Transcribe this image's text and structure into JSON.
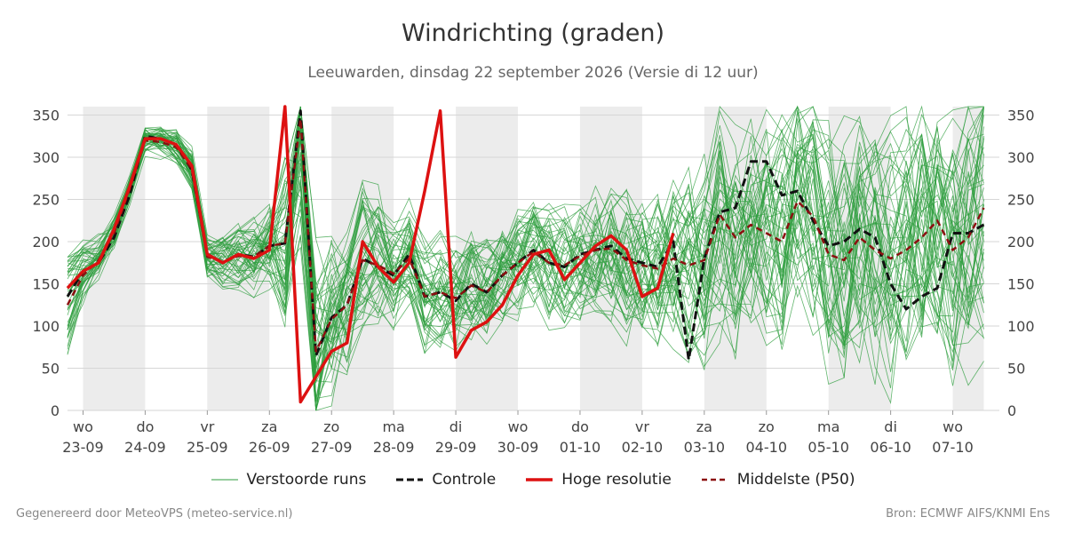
{
  "title": "Windrichting (graden)",
  "subtitle": "Leeuwarden, dinsdag 22 september 2026 (Versie di 12 uur)",
  "footer": {
    "left": "Gegenereerd door MeteoVPS (meteo-service.nl)",
    "right": "Bron: ECMWF AIFS/KNMI Ens"
  },
  "legend": [
    {
      "label": "Verstoorde runs",
      "color": "#2e9e3e",
      "style": "thin"
    },
    {
      "label": "Controle",
      "color": "#111111",
      "style": "dashed"
    },
    {
      "label": "Hoge resolutie",
      "color": "#dd1111",
      "style": "solid-thick"
    },
    {
      "label": "Middelste (P50)",
      "color": "#8b1010",
      "style": "dashed"
    }
  ],
  "chart_data": {
    "type": "line",
    "title": "Windrichting (graden)",
    "ylim": [
      0,
      360
    ],
    "yticks": [
      0,
      50,
      100,
      150,
      200,
      250,
      300,
      350
    ],
    "xlim": [
      -0.25,
      14.75
    ],
    "grid": true,
    "legend_position": "bottom",
    "weekend_shading": [
      [
        0,
        1
      ],
      [
        2,
        3
      ],
      [
        4,
        5
      ],
      [
        6,
        7
      ],
      [
        8,
        9
      ],
      [
        10,
        11
      ],
      [
        12,
        13
      ],
      [
        14,
        14.5
      ]
    ],
    "x_ticks": [
      {
        "day": "wo",
        "date": "23-09"
      },
      {
        "day": "do",
        "date": "24-09"
      },
      {
        "day": "vr",
        "date": "25-09"
      },
      {
        "day": "za",
        "date": "26-09"
      },
      {
        "day": "zo",
        "date": "27-09"
      },
      {
        "day": "ma",
        "date": "28-09"
      },
      {
        "day": "di",
        "date": "29-09"
      },
      {
        "day": "wo",
        "date": "30-09"
      },
      {
        "day": "do",
        "date": "01-10"
      },
      {
        "day": "vr",
        "date": "02-10"
      },
      {
        "day": "za",
        "date": "03-10"
      },
      {
        "day": "zo",
        "date": "04-10"
      },
      {
        "day": "ma",
        "date": "05-10"
      },
      {
        "day": "di",
        "date": "06-10"
      },
      {
        "day": "wo",
        "date": "07-10"
      }
    ],
    "series": [
      {
        "name": "Hoge resolutie",
        "x": [
          -0.25,
          0,
          0.25,
          0.5,
          0.75,
          1,
          1.25,
          1.5,
          1.75,
          2,
          2.25,
          2.5,
          2.75,
          3,
          3.25,
          3.5,
          3.75,
          4,
          4.25,
          4.5,
          4.75,
          5,
          5.25,
          5.5,
          5.75,
          6,
          6.25,
          6.5,
          6.75,
          7,
          7.25,
          7.5,
          7.75,
          8,
          8.25,
          8.5,
          8.75,
          9,
          9.25,
          9.5
        ],
        "y": [
          145,
          165,
          175,
          215,
          265,
          322,
          322,
          315,
          290,
          185,
          175,
          185,
          180,
          190,
          360,
          10,
          40,
          70,
          80,
          200,
          170,
          152,
          175,
          260,
          355,
          63,
          95,
          105,
          125,
          160,
          185,
          190,
          155,
          175,
          195,
          207,
          190,
          135,
          145,
          210
        ]
      },
      {
        "name": "Controle",
        "x": [
          -0.25,
          0,
          0.25,
          0.5,
          0.75,
          1,
          1.25,
          1.5,
          1.75,
          2,
          2.25,
          2.5,
          2.75,
          3,
          3.25,
          3.5,
          3.75,
          4,
          4.25,
          4.5,
          4.75,
          5,
          5.25,
          5.5,
          5.75,
          6,
          6.25,
          6.5,
          6.75,
          7,
          7.25,
          7.5,
          7.75,
          8,
          8.25,
          8.5,
          8.75,
          9,
          9.25,
          9.5,
          9.75,
          10,
          10.25,
          10.5,
          10.75,
          11,
          11.25,
          11.5,
          11.75,
          12,
          12.25,
          12.5,
          12.75,
          13,
          13.25,
          13.5,
          13.75,
          14,
          14.25,
          14.5
        ],
        "y": [
          135,
          165,
          175,
          205,
          255,
          325,
          322,
          315,
          285,
          185,
          175,
          185,
          182,
          195,
          198,
          355,
          65,
          110,
          125,
          180,
          170,
          160,
          185,
          135,
          140,
          130,
          150,
          140,
          160,
          175,
          190,
          175,
          170,
          185,
          190,
          195,
          180,
          175,
          170,
          200,
          60,
          180,
          235,
          240,
          295,
          295,
          255,
          260,
          225,
          195,
          200,
          215,
          205,
          150,
          120,
          135,
          145,
          210,
          210,
          220
        ]
      },
      {
        "name": "Middelste (P50)",
        "x": [
          -0.25,
          0,
          0.25,
          0.5,
          0.75,
          1,
          1.25,
          1.5,
          1.75,
          2,
          2.25,
          2.5,
          2.75,
          3,
          3.25,
          3.5,
          3.75,
          4,
          4.25,
          4.5,
          4.75,
          5,
          5.25,
          5.5,
          5.75,
          6,
          6.25,
          6.5,
          6.75,
          7,
          7.25,
          7.5,
          7.75,
          8,
          8.25,
          8.5,
          8.75,
          9,
          9.25,
          9.5,
          9.75,
          10,
          10.25,
          10.5,
          10.75,
          11,
          11.25,
          11.5,
          11.75,
          12,
          12.25,
          12.5,
          12.75,
          13,
          13.25,
          13.5,
          13.75,
          14,
          14.25,
          14.5
        ],
        "y": [
          125,
          160,
          178,
          210,
          262,
          320,
          318,
          312,
          286,
          182,
          176,
          183,
          182,
          195,
          198,
          345,
          70,
          108,
          125,
          178,
          172,
          162,
          180,
          135,
          140,
          133,
          148,
          140,
          160,
          175,
          188,
          175,
          172,
          183,
          190,
          192,
          178,
          172,
          168,
          180,
          172,
          178,
          232,
          205,
          220,
          210,
          200,
          248,
          230,
          185,
          178,
          205,
          190,
          180,
          190,
          205,
          225,
          190,
          205,
          240
        ]
      }
    ],
    "ensemble": {
      "name": "Verstoorde runs",
      "count": 50,
      "spread_by_day": [
        [
          -0.25,
          60
        ],
        [
          0,
          18
        ],
        [
          1,
          12
        ],
        [
          2,
          22
        ],
        [
          3,
          40
        ],
        [
          3.5,
          140
        ],
        [
          4,
          80
        ],
        [
          5,
          50
        ],
        [
          6,
          50
        ],
        [
          7,
          55
        ],
        [
          8,
          60
        ],
        [
          9,
          70
        ],
        [
          10,
          100
        ],
        [
          11,
          110
        ],
        [
          12,
          120
        ],
        [
          14.5,
          130
        ]
      ]
    }
  }
}
